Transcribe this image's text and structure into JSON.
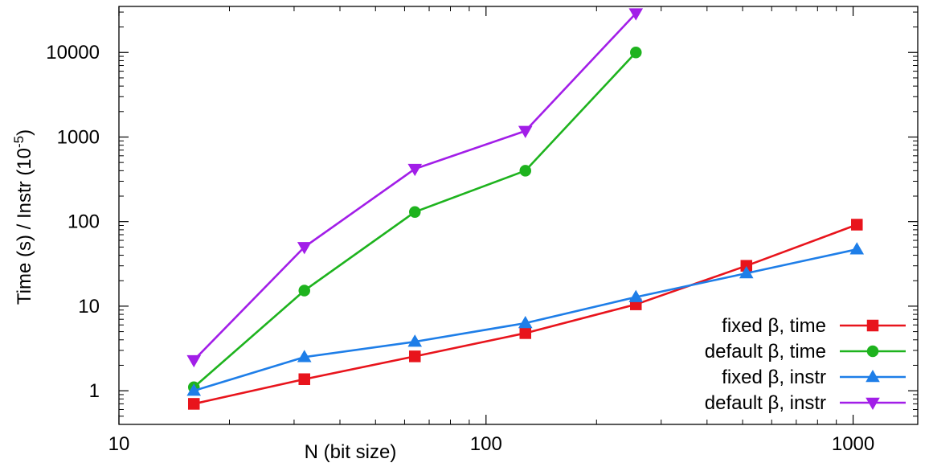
{
  "chart_data": {
    "type": "line",
    "xlabel": "N (bit size)",
    "ylabel": "Time (s) / Instr (10-5)",
    "ylabel_main": "Time (s) / Instr (10",
    "ylabel_sup": "-5",
    "ylabel_close": ")",
    "xscale": "log",
    "yscale": "log",
    "xlim": [
      10,
      1500
    ],
    "ylim": [
      0.4,
      35000
    ],
    "xticks": [
      10,
      100,
      1000
    ],
    "xtick_labels": [
      "10",
      "100",
      "1000"
    ],
    "yticks": [
      1,
      10,
      100,
      1000,
      10000
    ],
    "ytick_labels": [
      "1",
      "10",
      "100",
      "1000",
      "10000"
    ],
    "grid": false,
    "legend_position": "bottom-right",
    "series": [
      {
        "name": "fixed β, time",
        "color": "#e8141c",
        "marker": "square",
        "x": [
          16,
          32,
          64,
          128,
          256,
          512,
          1024
        ],
        "y": [
          0.7,
          1.37,
          2.55,
          4.8,
          10.5,
          30,
          92
        ]
      },
      {
        "name": "default β, time",
        "color": "#1eb31e",
        "marker": "circle",
        "x": [
          16,
          32,
          64,
          128,
          256
        ],
        "y": [
          1.1,
          15.3,
          130,
          400,
          10000
        ]
      },
      {
        "name": "fixed β, instr",
        "color": "#1e7ee8",
        "marker": "triangle-up",
        "x": [
          16,
          32,
          64,
          128,
          256,
          512,
          1024
        ],
        "y": [
          1.0,
          2.5,
          3.8,
          6.3,
          12.8,
          24.5,
          47
        ]
      },
      {
        "name": "default β, instr",
        "color": "#a21ee8",
        "marker": "triangle-down",
        "x": [
          16,
          32,
          64,
          128,
          256
        ],
        "y": [
          2.3,
          50,
          420,
          1180,
          29000
        ]
      }
    ]
  }
}
